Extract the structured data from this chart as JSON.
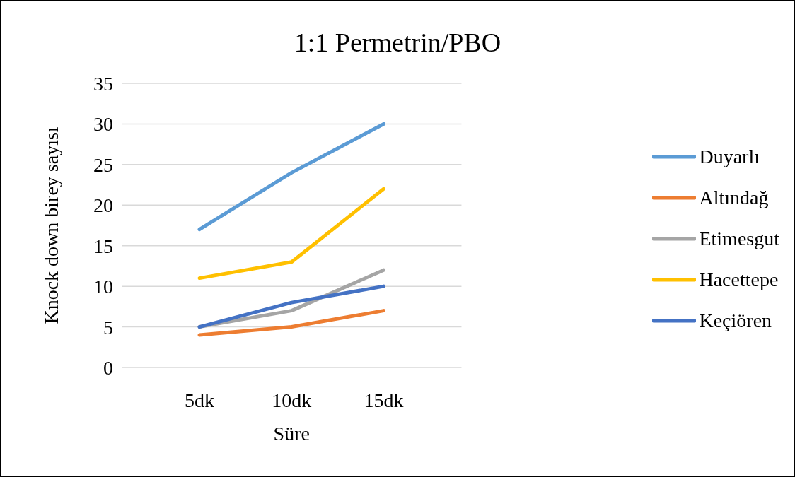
{
  "chart_data": {
    "type": "line",
    "title": "1:1 Permetrin/PBO",
    "xlabel": "Süre",
    "ylabel": "Knock down birey sayısı",
    "categories": [
      "5dk",
      "10dk",
      "15dk"
    ],
    "series": [
      {
        "name": "Duyarlı",
        "color": "#5b9bd5",
        "values": [
          17,
          24,
          30
        ]
      },
      {
        "name": "Altındağ",
        "color": "#ed7d31",
        "values": [
          4,
          5,
          7
        ]
      },
      {
        "name": "Etimesgut",
        "color": "#a5a5a5",
        "values": [
          5,
          7,
          12
        ]
      },
      {
        "name": "Hacettepe",
        "color": "#ffc000",
        "values": [
          11,
          13,
          22
        ]
      },
      {
        "name": "Keçiören",
        "color": "#4472c4",
        "values": [
          5,
          8,
          10
        ]
      }
    ],
    "ylim": [
      0,
      35
    ],
    "yticks": [
      0,
      5,
      10,
      15,
      20,
      25,
      30,
      35
    ],
    "grid": "y",
    "legend": "right",
    "marker": "none",
    "line_style": "solid"
  }
}
